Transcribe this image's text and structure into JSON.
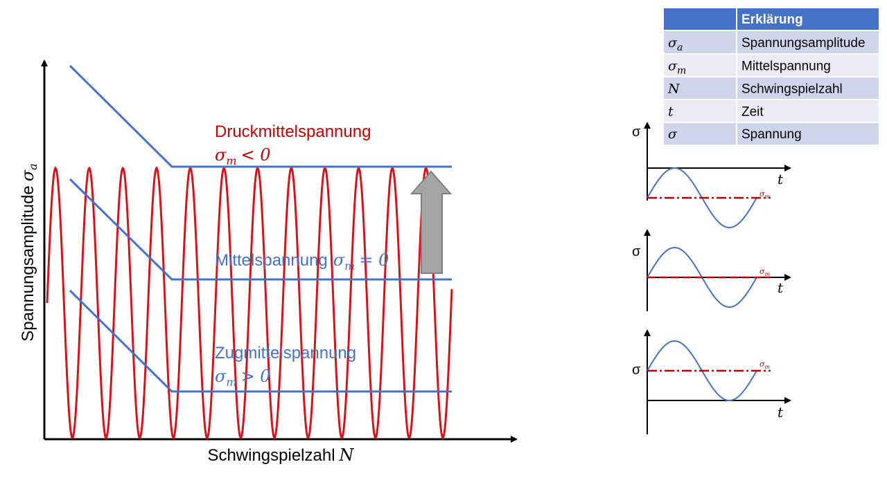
{
  "diagram": {
    "y_axis_label": {
      "text": "Spannungsamplitude",
      "symbol": "σ",
      "sub": "a"
    },
    "x_axis_label": {
      "text": "Schwingspielzahl",
      "symbol": "N"
    },
    "curves": [
      {
        "name": "Druckmittelspannung",
        "symbol": "σ",
        "sub": "m",
        "relation": "< 0"
      },
      {
        "name": "Mittelspannung",
        "symbol": "σ",
        "sub": "m",
        "relation": "= 0"
      },
      {
        "name": "Zugmittelspannung",
        "symbol": "σ",
        "sub": "m",
        "relation": "> 0"
      }
    ]
  },
  "table": {
    "header": {
      "title": "Erklärung"
    },
    "rows": [
      {
        "symbol": "σ",
        "sub": "a",
        "text": "Spannungsamplitude"
      },
      {
        "symbol": "σ",
        "sub": "m",
        "text": "Mittelspannung"
      },
      {
        "symbol": "N",
        "text": "Schwingspielzahl"
      },
      {
        "symbol": "t",
        "text": "Zeit"
      },
      {
        "symbol": "σ",
        "text": "Spannung"
      }
    ]
  },
  "plots": [
    {
      "y_label": "σ",
      "x_label": "t",
      "mean_label": {
        "symbol": "σ",
        "sub": "m"
      }
    },
    {
      "y_label": "σ",
      "x_label": "t",
      "mean_label": {
        "symbol": "σ",
        "sub": "m"
      }
    },
    {
      "y_label": "σ",
      "x_label": "t",
      "mean_label": {
        "symbol": "σ",
        "sub": "m"
      }
    }
  ]
}
